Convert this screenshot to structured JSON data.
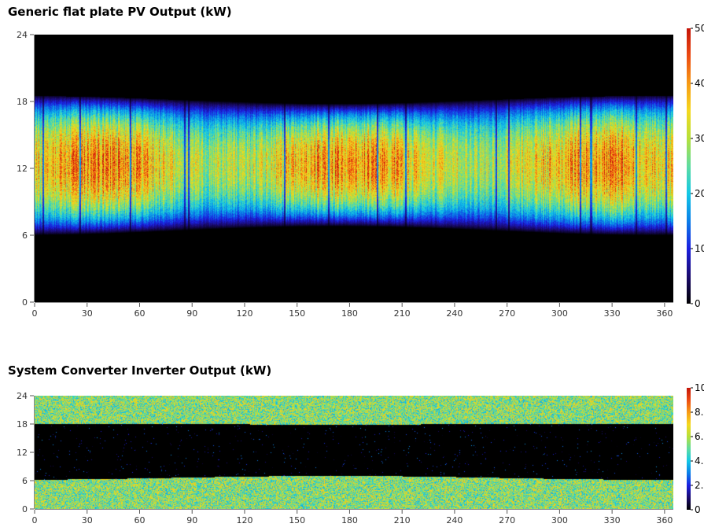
{
  "chart_data": [
    {
      "type": "heatmap",
      "title": "Generic flat plate PV Output (kW)",
      "xlabel": "",
      "ylabel": "",
      "xlim": [
        0,
        365
      ],
      "ylim": [
        0,
        24
      ],
      "xticks": [
        0,
        30,
        60,
        90,
        120,
        150,
        180,
        210,
        240,
        270,
        300,
        330,
        360
      ],
      "yticks": [
        0,
        6,
        12,
        18,
        24
      ],
      "colorbar": {
        "range": [
          0,
          50
        ],
        "labels": [
          "50",
          "40",
          "30",
          "20",
          "10",
          "0"
        ],
        "colors": [
          "#000000",
          "#1a0a6e",
          "#1b1fe0",
          "#0a7ee8",
          "#12c8e6",
          "#5fdca0",
          "#b5e03a",
          "#f5d81e",
          "#f79a14",
          "#ec4a12",
          "#c41408"
        ]
      },
      "pattern": "daytime",
      "x_category": "day of year",
      "y_category": "hour of day",
      "daylight_hours": {
        "start_winter": 6.8,
        "start_summer": 6.0,
        "end_winter": 17.8,
        "end_summer": 18.5,
        "peak_hour": 12.3,
        "peak_value_range": [
          35,
          48
        ]
      },
      "dim_days": [
        5,
        26,
        55,
        86,
        88,
        143,
        168,
        196,
        212,
        264,
        271,
        312,
        318,
        344,
        361
      ]
    },
    {
      "type": "heatmap",
      "title": "System Converter Inverter Output (kW)",
      "xlabel": "",
      "ylabel": "",
      "xlim": [
        0,
        365
      ],
      "ylim": [
        0,
        24
      ],
      "xticks": [
        0,
        30,
        60,
        90,
        120,
        150,
        180,
        210,
        240,
        270,
        300,
        330,
        360
      ],
      "yticks": [
        0,
        6,
        12,
        18,
        24
      ],
      "colorbar": {
        "range": [
          0,
          10
        ],
        "labels": [
          "10",
          "8.0",
          "6.0",
          "4.0",
          "2.0",
          "0"
        ],
        "colors": [
          "#000000",
          "#1a0a6e",
          "#1b1fe0",
          "#0a7ee8",
          "#12c8e6",
          "#5fdca0",
          "#b5e03a",
          "#f5d81e",
          "#f79a14",
          "#ec4a12",
          "#c41408"
        ]
      },
      "pattern": "nighttime",
      "x_category": "day of year",
      "y_category": "hour of day",
      "night_value_range": [
        3.5,
        7.5
      ],
      "day_value": 0,
      "daylight_hours": {
        "start_winter": 7.0,
        "start_summer": 6.2,
        "end_winter": 17.9,
        "end_summer": 18.0
      }
    }
  ]
}
